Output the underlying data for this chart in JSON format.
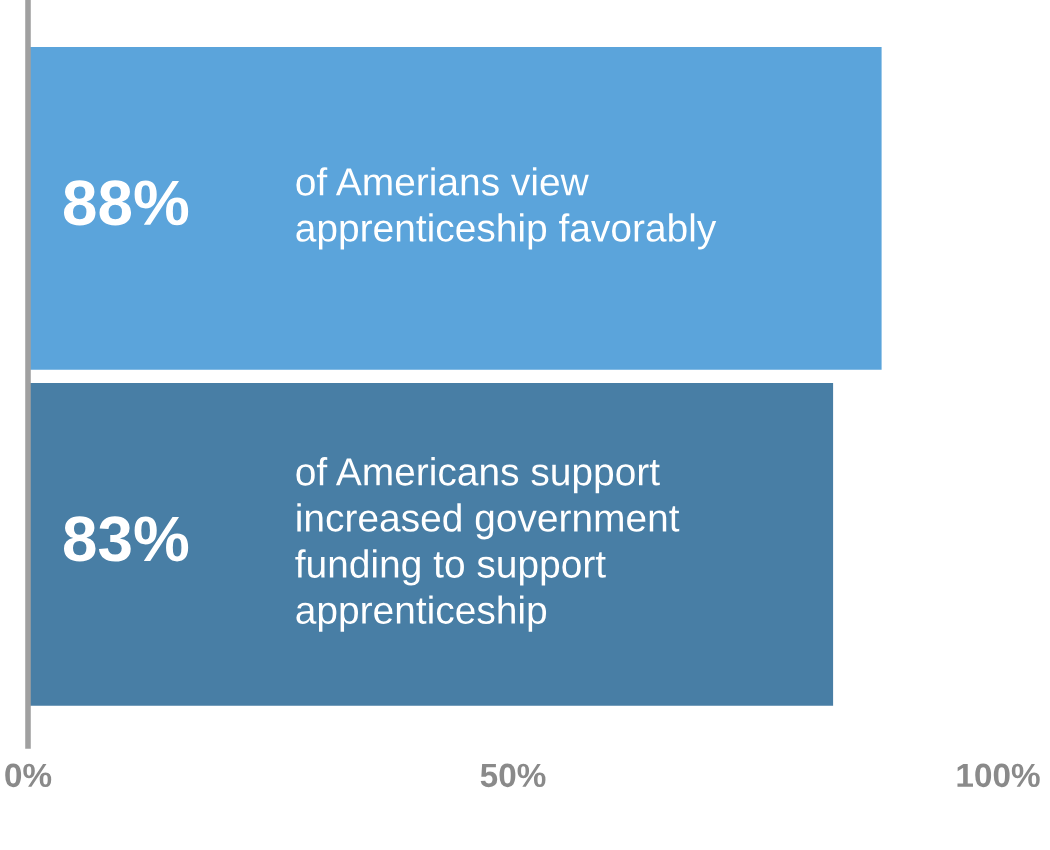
{
  "chart_data": {
    "type": "bar",
    "orientation": "horizontal",
    "categories": [
      "of Amerians view\napprenticeship favorably",
      "of Americans support\nincreased government\nfunding to support\napprenticeship"
    ],
    "values": [
      88,
      83
    ],
    "colors": [
      "#5ba4db",
      "#487ea5"
    ],
    "value_labels": [
      "88%",
      "83%"
    ],
    "xlim": [
      0,
      100
    ],
    "xticks": [
      {
        "value": 0,
        "label": "0%"
      },
      {
        "value": 50,
        "label": "50%"
      },
      {
        "value": 100,
        "label": "100%"
      }
    ],
    "grid": false,
    "legend": false
  }
}
